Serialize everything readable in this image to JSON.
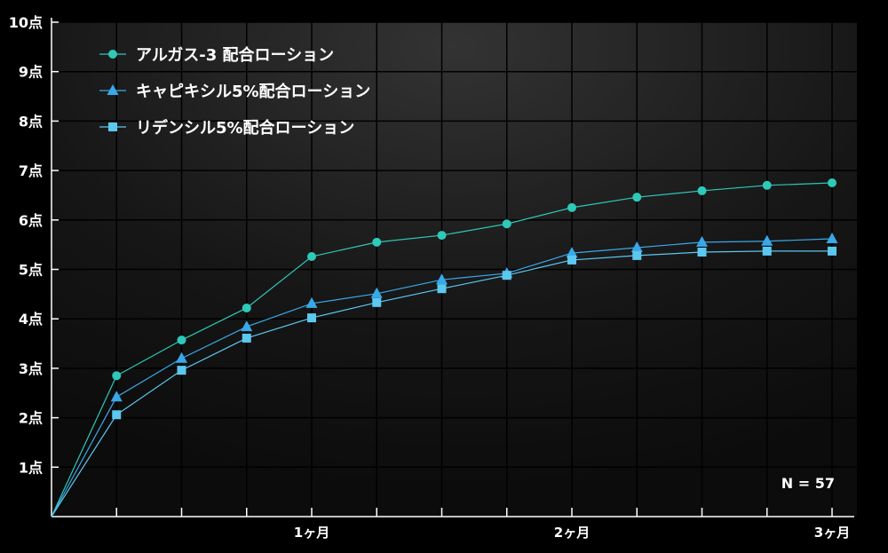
{
  "chart_data": {
    "type": "line",
    "x": [
      0,
      0.25,
      0.5,
      0.75,
      1,
      1.25,
      1.5,
      1.75,
      2,
      2.25,
      2.5,
      2.75,
      3
    ],
    "x_ticks": [
      {
        "value": 1,
        "label": "1ヶ月"
      },
      {
        "value": 2,
        "label": "2ヶ月"
      },
      {
        "value": 3,
        "label": "3ヶ月"
      }
    ],
    "y_ticks": [
      {
        "value": 1,
        "label": "1点"
      },
      {
        "value": 2,
        "label": "2点"
      },
      {
        "value": 3,
        "label": "3点"
      },
      {
        "value": 4,
        "label": "4点"
      },
      {
        "value": 5,
        "label": "5点"
      },
      {
        "value": 6,
        "label": "6点"
      },
      {
        "value": 7,
        "label": "7点"
      },
      {
        "value": 8,
        "label": "8点"
      },
      {
        "value": 9,
        "label": "9点"
      },
      {
        "value": 10,
        "label": "10点"
      }
    ],
    "xlim": [
      0,
      3.1
    ],
    "ylim": [
      0,
      10
    ],
    "grid": true,
    "legend": "top-left",
    "annotation": "N = 57",
    "series": [
      {
        "name": "アルガス-3 配合ローション",
        "marker": "circle",
        "color": "#2ec9b8",
        "values": [
          0,
          2.85,
          3.57,
          4.22,
          5.26,
          5.55,
          5.69,
          5.92,
          6.25,
          6.46,
          6.59,
          6.7,
          6.75
        ]
      },
      {
        "name": "キャピキシル5%配合ローション",
        "marker": "triangle",
        "color": "#3aa8e8",
        "values": [
          0,
          2.42,
          3.2,
          3.84,
          4.31,
          4.51,
          4.79,
          4.92,
          5.33,
          5.44,
          5.55,
          5.57,
          5.62
        ]
      },
      {
        "name": "リデンシル5%配合ローション",
        "marker": "square",
        "color": "#5cc8f0",
        "values": [
          0,
          2.06,
          2.96,
          3.61,
          4.02,
          4.33,
          4.61,
          4.88,
          5.19,
          5.28,
          5.35,
          5.37,
          5.37
        ]
      }
    ]
  }
}
